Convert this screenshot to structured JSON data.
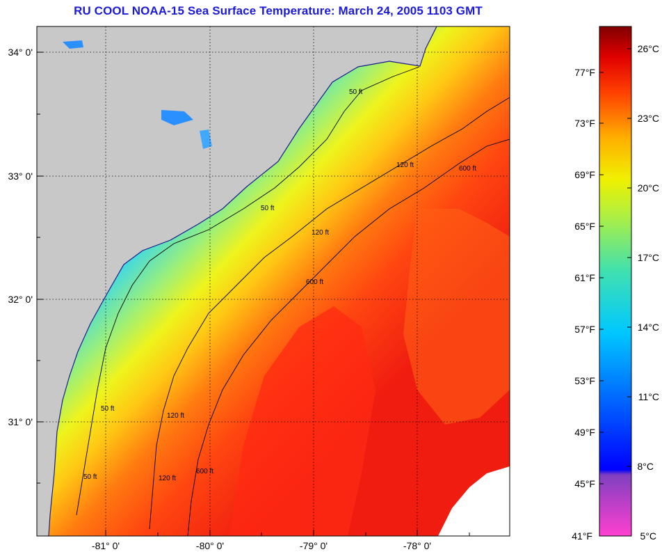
{
  "title": "RU COOL  NOAA-15  Sea Surface Temperature:  March 24, 2005 1103 GMT",
  "map": {
    "lat_labels": [
      "34° 0'",
      "33° 0'",
      "32° 0'",
      "31° 0'"
    ],
    "lon_labels": [
      "-81° 0'",
      "-80° 0'",
      "-79° 0'",
      "-78° 0'"
    ],
    "contour_labels": [
      "50 ft",
      "120 ft",
      "600 ft"
    ],
    "land_color": "#c8c8c8",
    "grid": "dotted"
  },
  "colorbar": {
    "fahrenheit_labels": [
      "77°F",
      "73°F",
      "69°F",
      "65°F",
      "61°F",
      "57°F",
      "53°F",
      "49°F",
      "45°F",
      "41°F"
    ],
    "celsius_labels": [
      "26°C",
      "23°C",
      "20°C",
      "17°C",
      "14°C",
      "11°C",
      "8°C",
      "5°C"
    ]
  }
}
